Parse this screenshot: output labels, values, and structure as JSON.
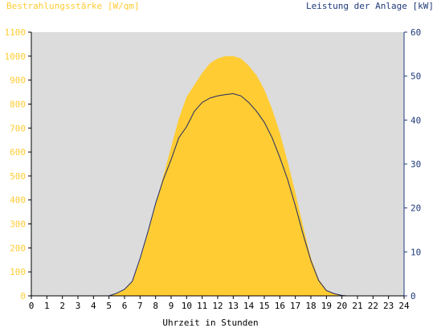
{
  "chart_data": {
    "type": "area",
    "left_axis_label": "Bestrahlungsstärke [W/qm]",
    "right_axis_label": "Leistung der Anlage [kW]",
    "xlabel": "Uhrzeit in Stunden",
    "x_ticks": [
      "0",
      "1",
      "2",
      "3",
      "4",
      "5",
      "6",
      "7",
      "8",
      "9",
      "10",
      "11",
      "12",
      "13",
      "14",
      "15",
      "16",
      "17",
      "18",
      "19",
      "20",
      "21",
      "22",
      "23",
      "24"
    ],
    "y_left_ticks": [
      "0",
      "100",
      "200",
      "300",
      "400",
      "500",
      "600",
      "700",
      "800",
      "900",
      "1000",
      "1100"
    ],
    "y_right_ticks": [
      "0",
      "10",
      "20",
      "30",
      "40",
      "50",
      "60"
    ],
    "xlim": [
      0,
      24
    ],
    "ylim_left": [
      0,
      1100
    ],
    "ylim_right": [
      0,
      60
    ],
    "grid": false,
    "colors": {
      "plot_background": "#dcdcdc",
      "irradiance_fill": "#ffcc33",
      "power_line": "#1f2a66",
      "left_axis_text": "#ffcc33",
      "right_axis_text": "#1f3a7a",
      "axis": "#000000"
    },
    "series": [
      {
        "axis": "left",
        "type": "area",
        "x": [
          5.0,
          5.5,
          6.0,
          6.5,
          7.0,
          7.5,
          8.0,
          8.5,
          9.0,
          9.5,
          10.0,
          10.5,
          11.0,
          11.5,
          12.0,
          12.5,
          13.0,
          13.5,
          14.0,
          14.5,
          15.0,
          15.5,
          16.0,
          16.5,
          17.0,
          17.5,
          18.0,
          18.5,
          19.0,
          19.5,
          20.0,
          20.3
        ],
        "values": [
          0,
          10,
          25,
          60,
          150,
          260,
          380,
          500,
          620,
          740,
          830,
          880,
          930,
          970,
          990,
          1000,
          1000,
          990,
          960,
          920,
          860,
          780,
          680,
          560,
          430,
          290,
          160,
          70,
          25,
          10,
          3,
          0
        ]
      },
      {
        "axis": "right",
        "type": "line",
        "x": [
          5.0,
          5.5,
          6.0,
          6.5,
          7.0,
          7.5,
          8.0,
          8.5,
          9.0,
          9.5,
          10.0,
          10.5,
          11.0,
          11.5,
          12.0,
          12.5,
          13.0,
          13.5,
          14.0,
          14.5,
          15.0,
          15.5,
          16.0,
          16.5,
          17.0,
          17.5,
          18.0,
          18.5,
          19.0,
          19.5,
          20.0,
          20.3
        ],
        "values": [
          0,
          0.6,
          1.5,
          3.3,
          8.5,
          14.5,
          21,
          26.5,
          31,
          36,
          38.5,
          42,
          44,
          45,
          45.5,
          45.8,
          46,
          45.5,
          44,
          42,
          39.5,
          36,
          31.5,
          26.5,
          20.5,
          14,
          8,
          3.5,
          1.2,
          0.5,
          0.1,
          0
        ]
      }
    ]
  }
}
